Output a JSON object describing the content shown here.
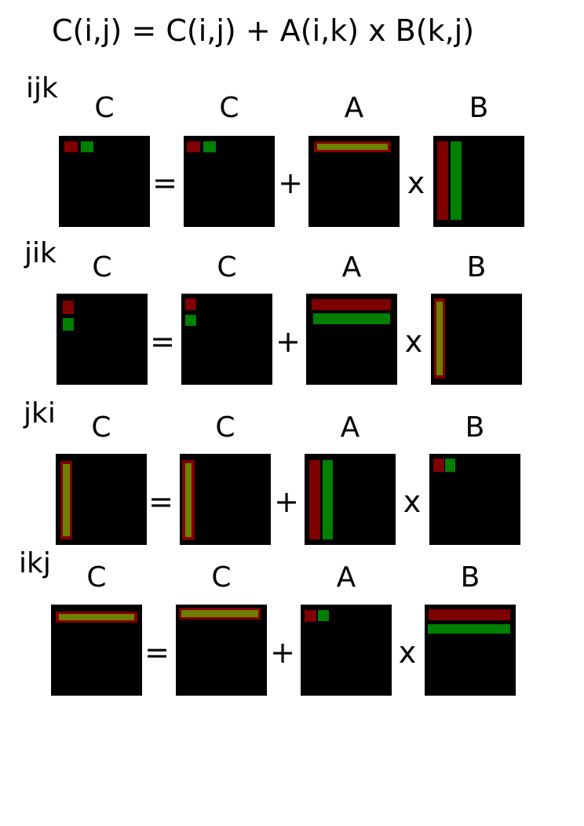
{
  "title": "C(i,j) = C(i,j) + A(i,k) x B(k,j)",
  "colors": {
    "matrix": "#000000",
    "outer_highlight": "#7f0000",
    "inner_highlight": "#007f00",
    "overlap": "#6f7f00"
  },
  "rows": [
    {
      "order": "ijk",
      "labels": [
        "C",
        "C",
        "A",
        "B"
      ],
      "ops": [
        "=",
        "+",
        "x"
      ]
    },
    {
      "order": "jik",
      "labels": [
        "C",
        "C",
        "A",
        "B"
      ],
      "ops": [
        "=",
        "+",
        "x"
      ]
    },
    {
      "order": "jki",
      "labels": [
        "C",
        "C",
        "A",
        "B"
      ],
      "ops": [
        "=",
        "+",
        "x"
      ]
    },
    {
      "order": "ikj",
      "labels": [
        "C",
        "C",
        "A",
        "B"
      ],
      "ops": [
        "=",
        "+",
        "x"
      ]
    }
  ]
}
